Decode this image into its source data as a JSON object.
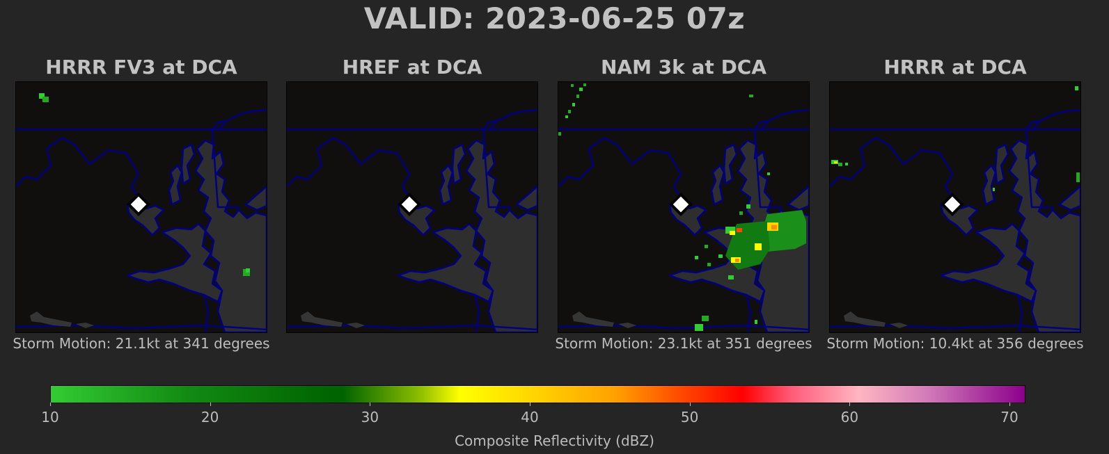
{
  "title": "VALID: 2023-06-25 07z",
  "panels": [
    {
      "title": "HRRR FV3 at DCA",
      "motion": "Storm Motion: 21.1kt at 341 degrees"
    },
    {
      "title": "HREF at DCA",
      "motion": ""
    },
    {
      "title": "NAM 3k at DCA",
      "motion": "Storm Motion: 23.1kt at 351 degrees"
    },
    {
      "title": "HRRR at DCA",
      "motion": "Storm Motion: 10.4kt at 356 degrees"
    }
  ],
  "station_marker_icon": "diamond-icon",
  "colors": {
    "background": "#252525",
    "map_land": "#110e0e",
    "water": "#2e2e2e",
    "borders": "#000080"
  },
  "colorbar": {
    "ticks": [
      "10",
      "20",
      "30",
      "40",
      "50",
      "60",
      "70"
    ],
    "label": "Composite Reflectivity (dBZ)",
    "range": [
      10,
      70
    ]
  }
}
